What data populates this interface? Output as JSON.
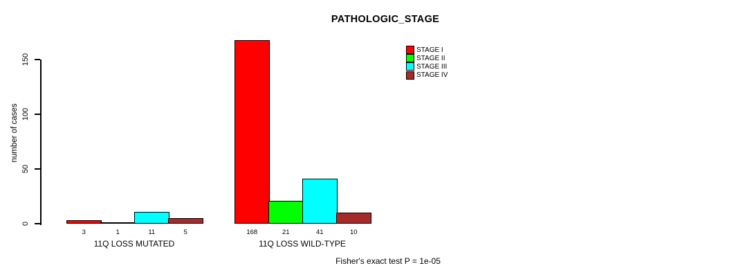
{
  "chart_data": {
    "type": "bar",
    "title": "PATHOLOGIC_STAGE",
    "ylabel": "number of cases",
    "xlabel": "",
    "ylim": [
      0,
      170
    ],
    "yticks": [
      0,
      50,
      100,
      150
    ],
    "grid": false,
    "legend_position": "top-right-inside",
    "bar_borders": true,
    "categories": [
      "11Q LOSS MUTATED",
      "11Q LOSS WILD-TYPE"
    ],
    "series": [
      {
        "name": "STAGE I",
        "color": "#ff0000",
        "values": [
          3,
          168
        ]
      },
      {
        "name": "STAGE II",
        "color": "#00ff00",
        "values": [
          1,
          21
        ]
      },
      {
        "name": "STAGE III",
        "color": "#00ffff",
        "values": [
          11,
          41
        ]
      },
      {
        "name": "STAGE IV",
        "color": "#a52a2a",
        "values": [
          5,
          10
        ]
      }
    ],
    "annotation": "Fisher's exact test P = 1e-05"
  },
  "colors": {
    "background": "#ffffff",
    "axis": "#000000",
    "text": "#000000"
  }
}
